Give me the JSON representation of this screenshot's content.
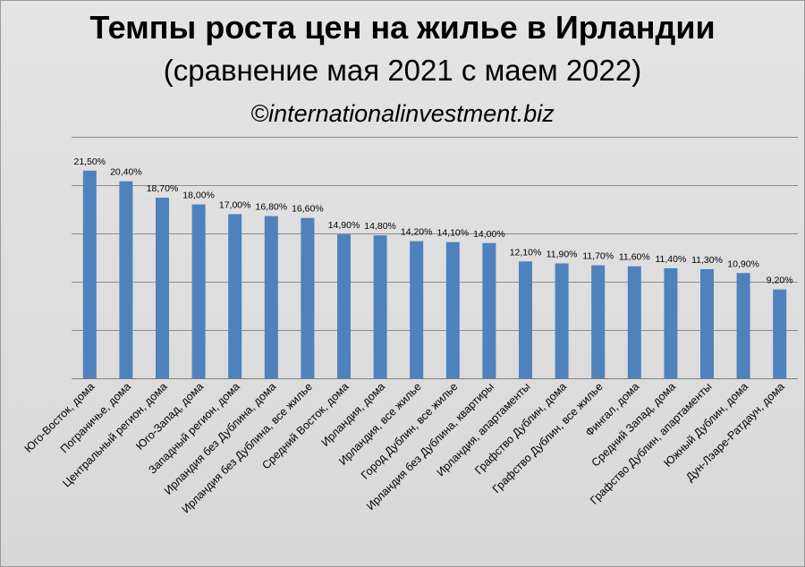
{
  "chart_data": {
    "type": "bar",
    "title": "Темпы роста цен на жилье в Ирландии",
    "subtitle": "(сравнение мая 2021 с маем 2022)",
    "source": "©internationalinvestment.biz",
    "categories": [
      "Юго-Восток, дома",
      "Пограничье, дома",
      "Центральный регион, дома",
      "Юго-Запад, дома",
      "Западный регион, дома",
      "Ирландия без Дублина, дома",
      "Ирландия без Дублина, все жилье",
      "Средний Восток, дома",
      "Ирландия, дома",
      "Ирландия, все жилье",
      "Город Дублин, все жилье",
      "Ирландия без Дублина, квартиры",
      "Ирландия, апартаменты",
      "Графство Дублин, дома",
      "Графство Дублин, все жилье",
      "Фингал, дома",
      "Средний Запад, дома",
      "Графство Дублин, апартаменты",
      "Южный Дублин, дома",
      "Дун-Лэаре-Ратдаун, дома"
    ],
    "values": [
      21.5,
      20.4,
      18.7,
      18.0,
      17.0,
      16.8,
      16.6,
      14.9,
      14.8,
      14.2,
      14.1,
      14.0,
      12.1,
      11.9,
      11.7,
      11.6,
      11.4,
      11.3,
      10.9,
      9.2
    ],
    "value_labels": [
      "21,50%",
      "20,40%",
      "18,70%",
      "18,00%",
      "17,00%",
      "16,80%",
      "16,60%",
      "14,90%",
      "14,80%",
      "14,20%",
      "14,10%",
      "14,00%",
      "12,10%",
      "11,90%",
      "11,70%",
      "11,60%",
      "11,40%",
      "11,30%",
      "10,90%",
      "9,20%"
    ],
    "ylim": [
      0,
      25
    ],
    "grid_step": 5,
    "grid": true,
    "y_tick_labels_shown": false,
    "bar_color": "#4f81bd"
  }
}
